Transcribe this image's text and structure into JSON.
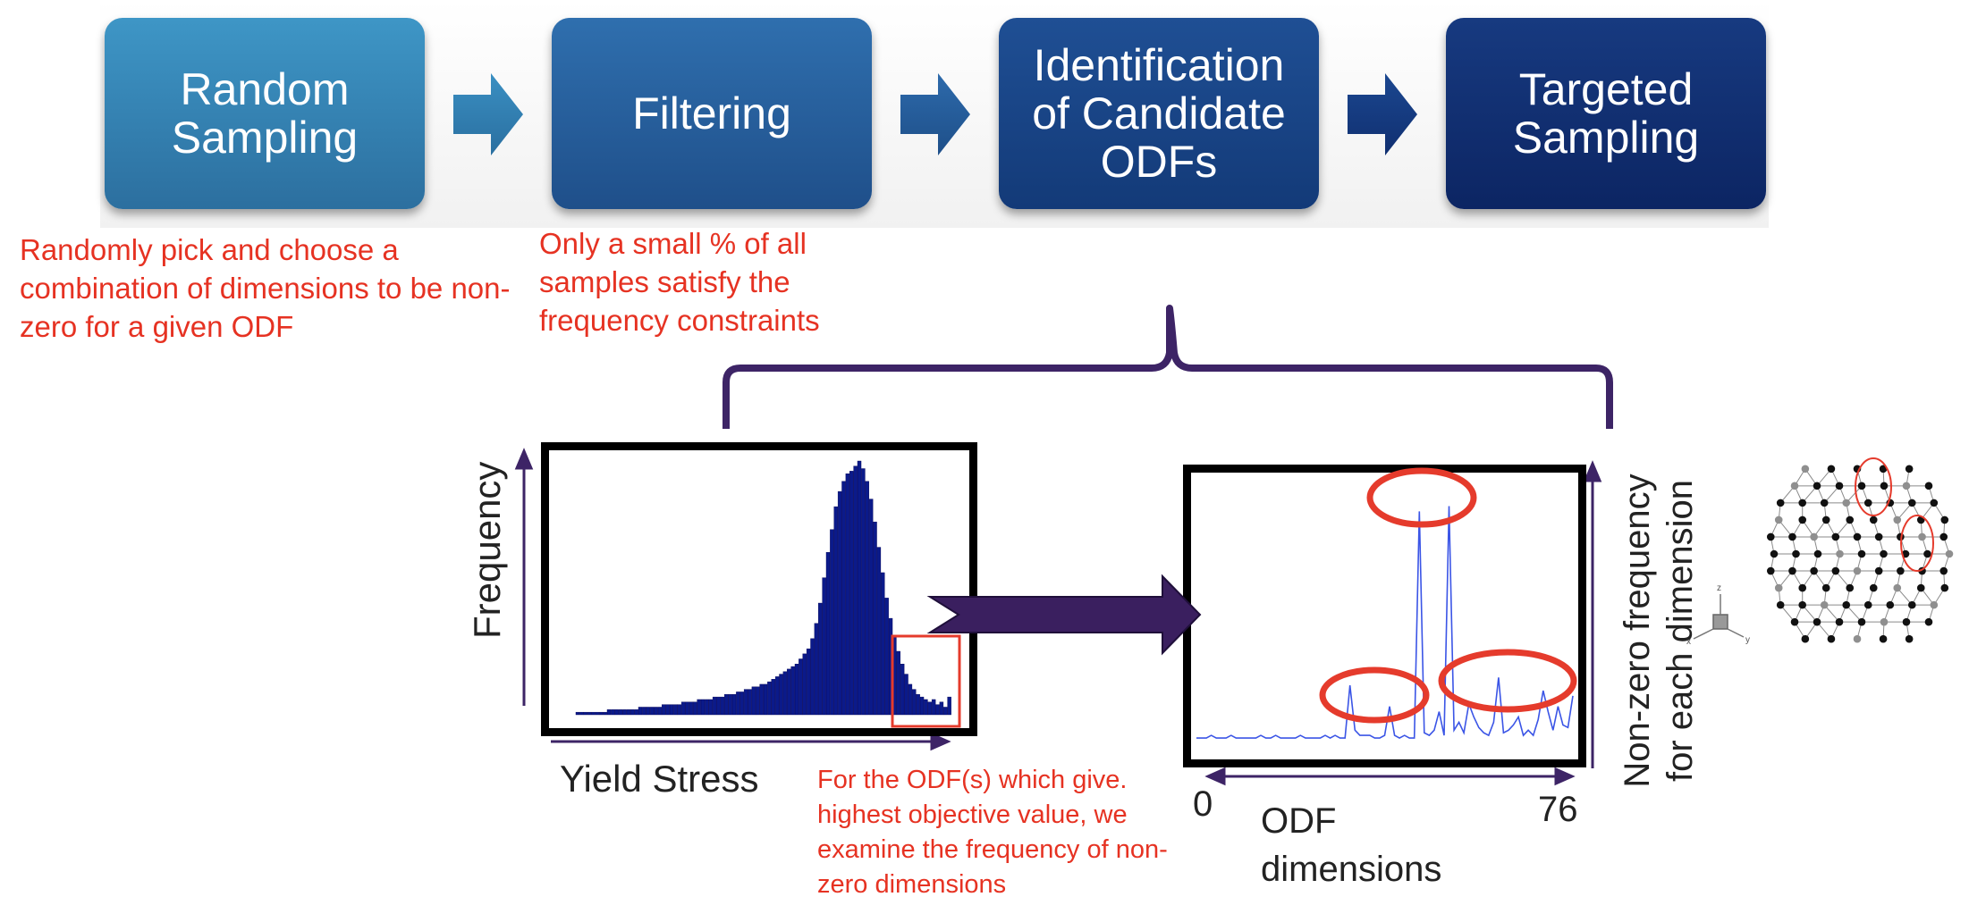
{
  "steps": [
    {
      "label": "Random\nSampling",
      "color": "#3683b4"
    },
    {
      "label": "Filtering",
      "color": "#265f9c"
    },
    {
      "label": "Identification\nof Candidate\nODFs",
      "color": "#17438a"
    },
    {
      "label": "Targeted\nSampling",
      "color": "#0f2c6e"
    }
  ],
  "notes": {
    "random_sampling": "Randomly pick and choose a combination of dimensions to be non-zero for a given ODF",
    "filtering": "Only a small % of all samples satisfy the frequency constraints",
    "odf_examine": "For the ODF(s) which give. highest objective value, we examine the frequency of non-zero dimensions"
  },
  "histogram": {
    "ylabel": "Frequency",
    "xlabel": "Yield Stress",
    "color": "#0b1a8a"
  },
  "odf_plot": {
    "ylabel": "Non-zero frequency\nfor each dimension",
    "xlabel": "ODF\ndimensions",
    "x_min_label": "0",
    "x_max_label": "76",
    "line_color": "#3b55e6"
  },
  "colors": {
    "note_red": "#e63222",
    "bracket_purple": "#3d2466",
    "highlight_red": "#e53b2c"
  },
  "chart_data": [
    {
      "type": "bar",
      "xlabel": "Yield Stress",
      "ylabel": "Frequency",
      "values": [
        1,
        1,
        1,
        1,
        1,
        1,
        1,
        1,
        2,
        2,
        2,
        2,
        2,
        2,
        2,
        2,
        3,
        3,
        3,
        3,
        3,
        3,
        4,
        4,
        4,
        4,
        4,
        5,
        5,
        5,
        5,
        6,
        6,
        6,
        6,
        7,
        7,
        7,
        8,
        8,
        8,
        9,
        9,
        10,
        10,
        11,
        11,
        12,
        12,
        13,
        14,
        15,
        16,
        17,
        18,
        19,
        20,
        22,
        24,
        26,
        30,
        36,
        44,
        54,
        64,
        73,
        82,
        88,
        92,
        95,
        96,
        98,
        100,
        97,
        92,
        85,
        76,
        66,
        56,
        46,
        38,
        31,
        25,
        20,
        16,
        12,
        10,
        8,
        7,
        6,
        5,
        6,
        4,
        5,
        3,
        7
      ]
    },
    {
      "type": "line",
      "xlabel": "ODF dimensions",
      "ylabel": "Non-zero frequency for each dimension",
      "xlim": [
        0,
        76
      ],
      "values": [
        2,
        2,
        2,
        3,
        2,
        2,
        2,
        3,
        2,
        2,
        2,
        2,
        2,
        3,
        2,
        2,
        3,
        2,
        2,
        2,
        2,
        3,
        2,
        2,
        2,
        2,
        3,
        2,
        3,
        2,
        2,
        22,
        5,
        3,
        3,
        3,
        2,
        2,
        3,
        14,
        3,
        2,
        3,
        2,
        2,
        88,
        4,
        3,
        5,
        12,
        3,
        90,
        5,
        8,
        4,
        15,
        10,
        6,
        4,
        3,
        8,
        25,
        4,
        5,
        7,
        10,
        3,
        5,
        3,
        9,
        20,
        12,
        5,
        14,
        7,
        6,
        18
      ]
    }
  ]
}
